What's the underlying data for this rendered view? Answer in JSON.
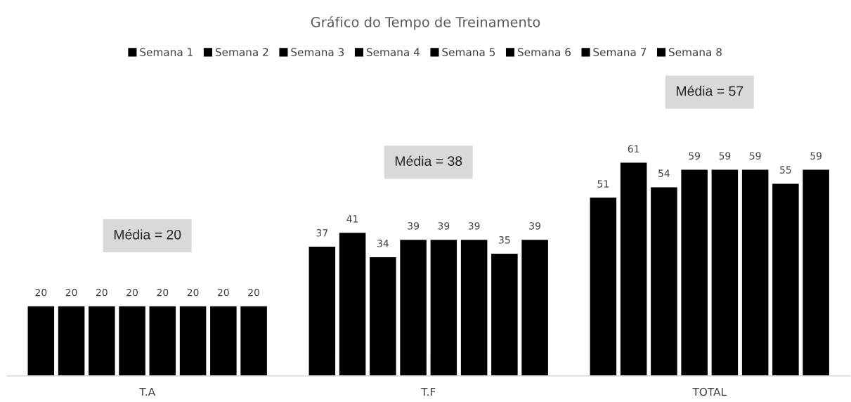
{
  "chart_data": {
    "type": "bar",
    "title": "Gráfico do Tempo de Treinamento",
    "categories": [
      "T.A",
      "T.F",
      "TOTAL"
    ],
    "series": [
      {
        "name": "Semana 1",
        "color": "#000000",
        "values": [
          20,
          37,
          51
        ]
      },
      {
        "name": "Semana 2",
        "color": "#000000",
        "values": [
          20,
          41,
          61
        ]
      },
      {
        "name": "Semana 3",
        "color": "#000000",
        "values": [
          20,
          34,
          54
        ]
      },
      {
        "name": "Semana 4",
        "color": "#000000",
        "values": [
          20,
          39,
          59
        ]
      },
      {
        "name": "Semana 5",
        "color": "#000000",
        "values": [
          20,
          39,
          59
        ]
      },
      {
        "name": "Semana 6",
        "color": "#000000",
        "values": [
          20,
          39,
          59
        ]
      },
      {
        "name": "Semana 7",
        "color": "#000000",
        "values": [
          20,
          35,
          55
        ]
      },
      {
        "name": "Semana 8",
        "color": "#000000",
        "values": [
          20,
          39,
          59
        ]
      }
    ],
    "annotations": [
      "Média = 20",
      "Média = 38",
      "Média = 57"
    ],
    "data_labels": true,
    "legend": "top",
    "grid": false,
    "tick_labels": "x"
  }
}
